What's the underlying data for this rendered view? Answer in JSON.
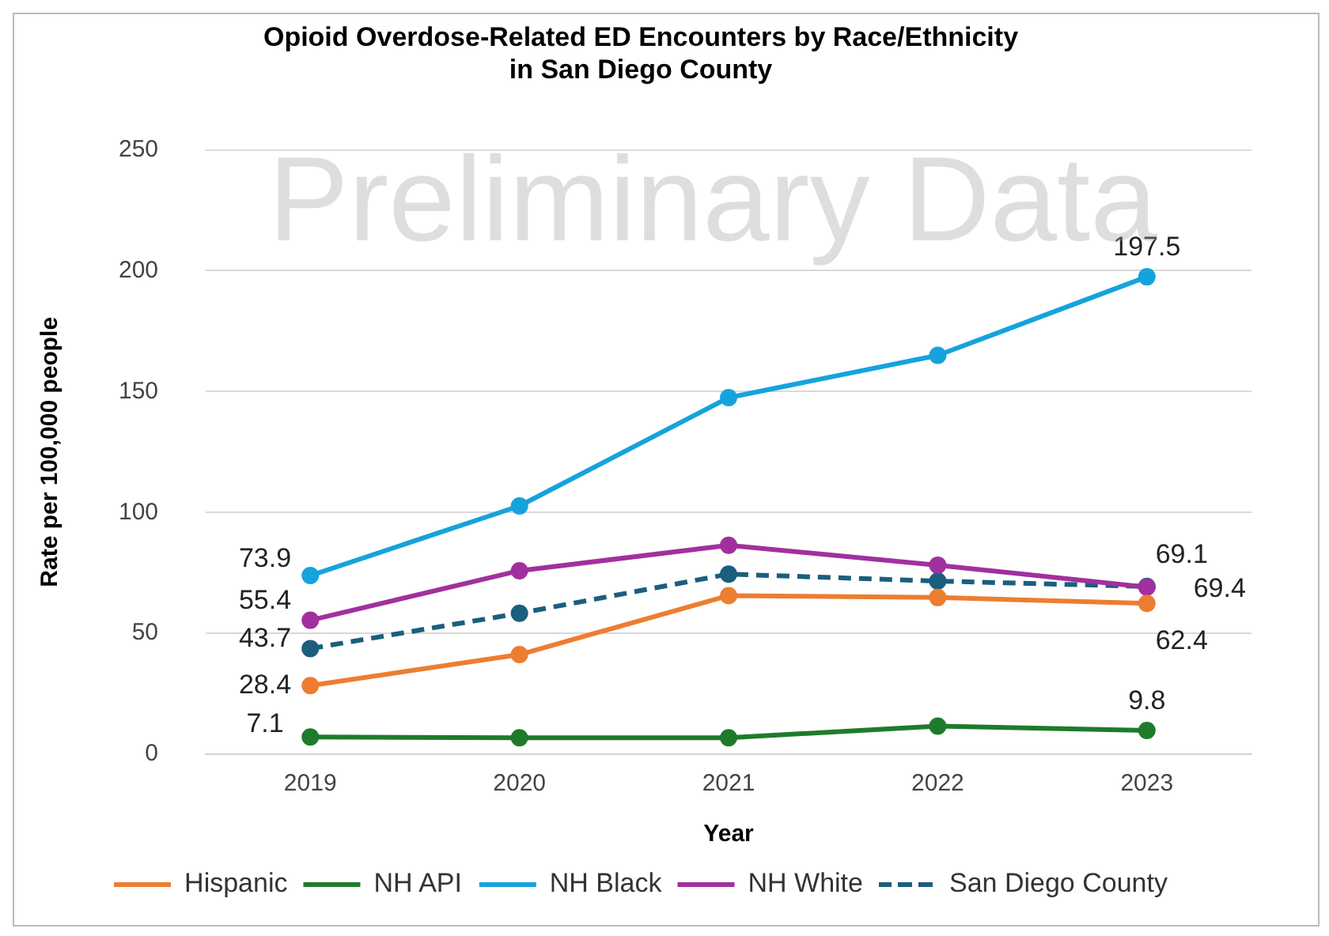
{
  "chart_data": {
    "type": "line",
    "title": "Opioid Overdose-Related ED Encounters by Race/Ethnicity\nin San Diego County",
    "xlabel": "Year",
    "ylabel": "Rate per 100,000 people",
    "categories": [
      "2019",
      "2020",
      "2021",
      "2022",
      "2023"
    ],
    "ylim": [
      0,
      250
    ],
    "yticks": [
      0,
      50,
      100,
      150,
      200,
      250
    ],
    "grid": "y",
    "legend": "bottom",
    "marker": "circle",
    "annotations": [
      "Preliminary Data"
    ],
    "series": [
      {
        "name": "Hispanic",
        "color": "#ed7d31",
        "values": [
          28.4,
          41.2,
          65.6,
          64.8,
          62.4
        ],
        "value_labels": [
          "28.4",
          null,
          null,
          null,
          "62.4"
        ]
      },
      {
        "name": "NH API",
        "color": "#1e7b2b",
        "values": [
          7.1,
          6.8,
          6.8,
          11.6,
          9.8
        ],
        "value_labels": [
          "7.1",
          null,
          null,
          null,
          "9.8"
        ]
      },
      {
        "name": "NH Black",
        "color": "#15a3dc",
        "values": [
          73.9,
          102.7,
          147.5,
          165.0,
          197.5
        ],
        "value_labels": [
          "73.9",
          null,
          null,
          null,
          "197.5"
        ]
      },
      {
        "name": "NH White",
        "color": "#a1309e",
        "values": [
          55.4,
          75.9,
          86.4,
          78.2,
          69.1
        ],
        "value_labels": [
          "55.4",
          null,
          null,
          null,
          "69.1"
        ]
      },
      {
        "name": "San Diego County",
        "color": "#1b5e7e",
        "line_style": "dashed",
        "values": [
          43.7,
          58.3,
          74.5,
          71.6,
          69.4
        ],
        "value_labels": [
          "43.7",
          null,
          null,
          null,
          "69.4"
        ]
      }
    ]
  }
}
